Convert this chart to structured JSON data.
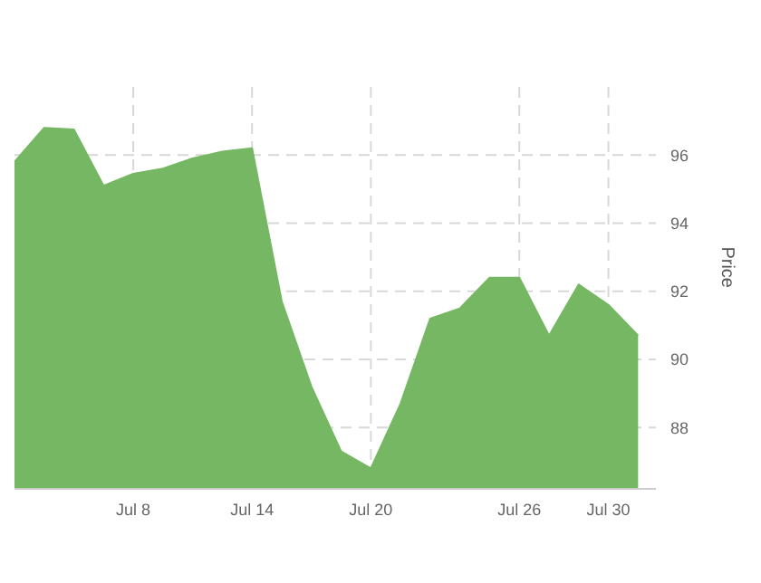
{
  "chart_data": {
    "type": "area",
    "ylabel": "Price",
    "categories": [
      null,
      null,
      null,
      null,
      "Jul 8",
      null,
      null,
      null,
      "Jul 14",
      null,
      null,
      null,
      "Jul 20",
      null,
      null,
      null,
      null,
      "Jul 26",
      null,
      null,
      "Jul 30",
      null
    ],
    "series": [
      {
        "color": "#76b763",
        "values": [
          95.8,
          96.8,
          96.75,
          95.1,
          95.45,
          95.6,
          95.9,
          96.1,
          96.2,
          91.7,
          89.2,
          87.3,
          86.8,
          88.7,
          91.2,
          91.5,
          92.4,
          92.4,
          90.7,
          92.2,
          91.6,
          90.7
        ]
      }
    ],
    "ylim": [
      86.2,
      98
    ],
    "yticks": [
      88,
      90,
      92,
      94,
      96
    ],
    "grid": true,
    "legend": false
  }
}
